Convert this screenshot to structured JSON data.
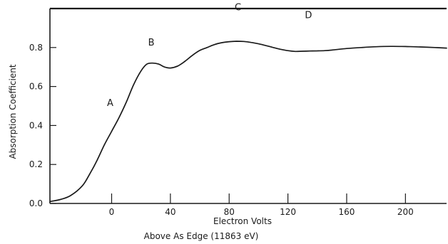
{
  "chart_data": {
    "type": "line",
    "title": "",
    "xlabel": "Electron Volts",
    "xlabel_line2": "Above As Edge (11863 eV)",
    "ylabel": "Absorption Coefficient",
    "xlim": [
      -42,
      228
    ],
    "ylim": [
      0.0,
      1.0
    ],
    "x_ticks": [
      0,
      40,
      80,
      120,
      160,
      200
    ],
    "x_tick_labels": [
      "0",
      "40",
      "80",
      "120",
      "160",
      "200"
    ],
    "y_ticks": [
      0.0,
      0.2,
      0.4,
      0.6,
      0.8
    ],
    "y_tick_labels": [
      "0.0",
      "0.2",
      "0.4",
      "0.6",
      "0.8"
    ],
    "grid": false,
    "legend": "none",
    "series": [
      {
        "x": [
          -42,
          -35,
          -28,
          -20,
          -15,
          -10,
          -5,
          0,
          5,
          10,
          15,
          20,
          24,
          28,
          32,
          36,
          40,
          45,
          50,
          55,
          60,
          65,
          70,
          75,
          80,
          85,
          90,
          95,
          100,
          105,
          110,
          115,
          120,
          125,
          130,
          135,
          140,
          145,
          150,
          160,
          170,
          180,
          190,
          200,
          210,
          220,
          228
        ],
        "y": [
          0.01,
          0.02,
          0.04,
          0.09,
          0.15,
          0.22,
          0.3,
          0.37,
          0.44,
          0.52,
          0.61,
          0.68,
          0.715,
          0.72,
          0.715,
          0.7,
          0.695,
          0.705,
          0.73,
          0.76,
          0.785,
          0.8,
          0.815,
          0.825,
          0.83,
          0.832,
          0.831,
          0.826,
          0.819,
          0.81,
          0.8,
          0.791,
          0.784,
          0.78,
          0.781,
          0.782,
          0.783,
          0.784,
          0.787,
          0.795,
          0.8,
          0.804,
          0.806,
          0.805,
          0.803,
          0.8,
          0.797
        ]
      }
    ],
    "annotations": [
      {
        "label": "A",
        "x": -1,
        "y": 0.5
      },
      {
        "label": "B",
        "x": 27,
        "y": 0.81
      },
      {
        "label": "C",
        "x": 86,
        "y": 0.99
      },
      {
        "label": "D",
        "x": 134,
        "y": 0.95
      }
    ]
  }
}
